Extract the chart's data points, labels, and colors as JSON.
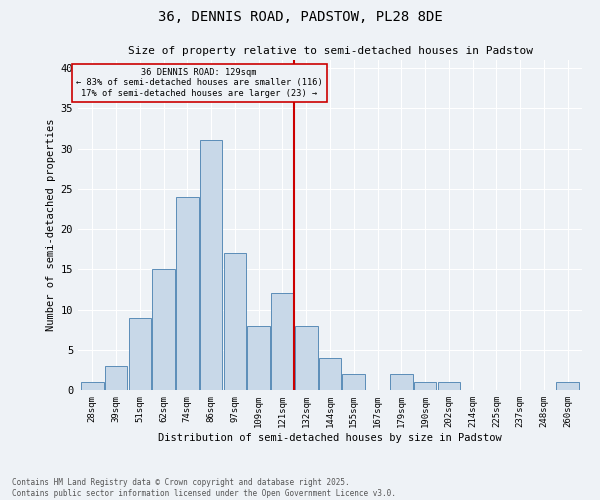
{
  "title1": "36, DENNIS ROAD, PADSTOW, PL28 8DE",
  "title2": "Size of property relative to semi-detached houses in Padstow",
  "xlabel": "Distribution of semi-detached houses by size in Padstow",
  "ylabel": "Number of semi-detached properties",
  "bar_labels": [
    "28sqm",
    "39sqm",
    "51sqm",
    "62sqm",
    "74sqm",
    "86sqm",
    "97sqm",
    "109sqm",
    "121sqm",
    "132sqm",
    "144sqm",
    "155sqm",
    "167sqm",
    "179sqm",
    "190sqm",
    "202sqm",
    "214sqm",
    "225sqm",
    "237sqm",
    "248sqm",
    "260sqm"
  ],
  "bar_values": [
    1,
    3,
    9,
    15,
    24,
    31,
    17,
    8,
    12,
    8,
    4,
    2,
    0,
    2,
    1,
    1,
    0,
    0,
    0,
    0,
    1
  ],
  "bar_color": "#c8d8e8",
  "bar_edge_color": "#5b8db8",
  "vline_color": "#cc0000",
  "annotation_box_edge": "#cc0000",
  "annotation_label": "36 DENNIS ROAD: 129sqm",
  "annotation_line1": "← 83% of semi-detached houses are smaller (116)",
  "annotation_line2": "17% of semi-detached houses are larger (23) →",
  "ylim": [
    0,
    41
  ],
  "yticks": [
    0,
    5,
    10,
    15,
    20,
    25,
    30,
    35,
    40
  ],
  "background_color": "#eef2f6",
  "grid_color": "#ffffff",
  "footer": "Contains HM Land Registry data © Crown copyright and database right 2025.\nContains public sector information licensed under the Open Government Licence v3.0.",
  "vline_index": 8.5
}
